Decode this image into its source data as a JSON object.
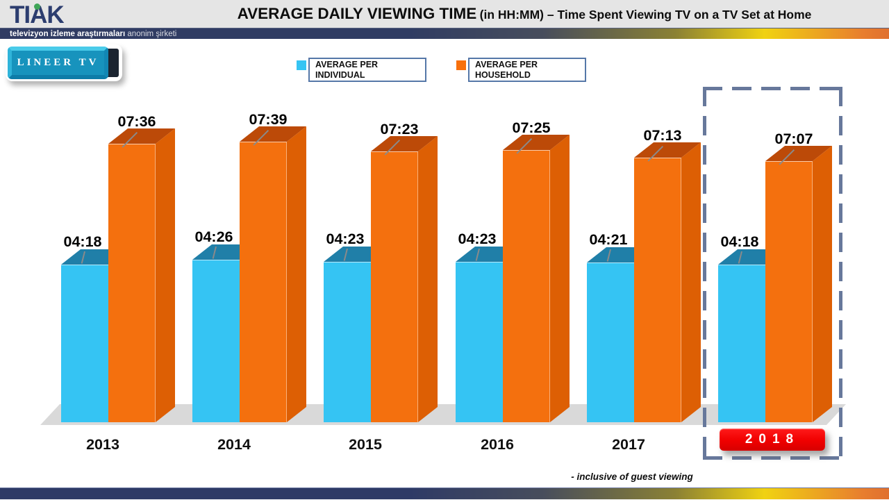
{
  "header": {
    "logo_text": "TIAK",
    "tagline_bold": "televizyon izleme araştırmaları",
    "tagline_light": "anonim şirketi",
    "title_main": "AVERAGE DAILY VIEWING TIME",
    "title_sub": "(in HH:MM) – Time Spent Viewing TV on a TV Set at Home"
  },
  "lineer_badge": {
    "label": "LINEER TV"
  },
  "legend": {
    "individual": {
      "line1": "AVERAGE PER",
      "line2": "INDIVIDUAL",
      "color": "#35C4F3"
    },
    "household": {
      "line1": "AVERAGE PER",
      "line2": "HOUSEHOLD",
      "color": "#F8700C"
    }
  },
  "highlight": {
    "year": "2018",
    "badge_color": "#EE0000",
    "box_color": "#67789B"
  },
  "footnote": "- inclusive of guest viewing",
  "chart_data": {
    "type": "bar",
    "title": "AVERAGE DAILY VIEWING TIME (in HH:MM) – Time Spent Viewing TV on a TV Set at Home",
    "unit": "HH:MM",
    "categories": [
      "2013",
      "2014",
      "2015",
      "2016",
      "2017",
      "2018"
    ],
    "series": [
      {
        "name": "AVERAGE PER INDIVIDUAL",
        "color": "#35C4F3",
        "top_color": "#207FA8",
        "values_hhmm": [
          "04:18",
          "04:26",
          "04:23",
          "04:23",
          "04:21",
          "04:18"
        ],
        "values_minutes": [
          258,
          266,
          263,
          263,
          261,
          258
        ]
      },
      {
        "name": "AVERAGE PER HOUSEHOLD",
        "color": "#F4700E",
        "top_color": "#BC4A08",
        "side_color": "#DD5F04",
        "values_hhmm": [
          "07:36",
          "07:39",
          "07:23",
          "07:25",
          "07:13",
          "07:07"
        ],
        "values_minutes": [
          456,
          459,
          443,
          445,
          433,
          427
        ]
      }
    ],
    "highlighted_category": "2018",
    "ylim_minutes": [
      0,
      480
    ],
    "grid": false,
    "legend_position": "top",
    "style": "3d-bars"
  }
}
